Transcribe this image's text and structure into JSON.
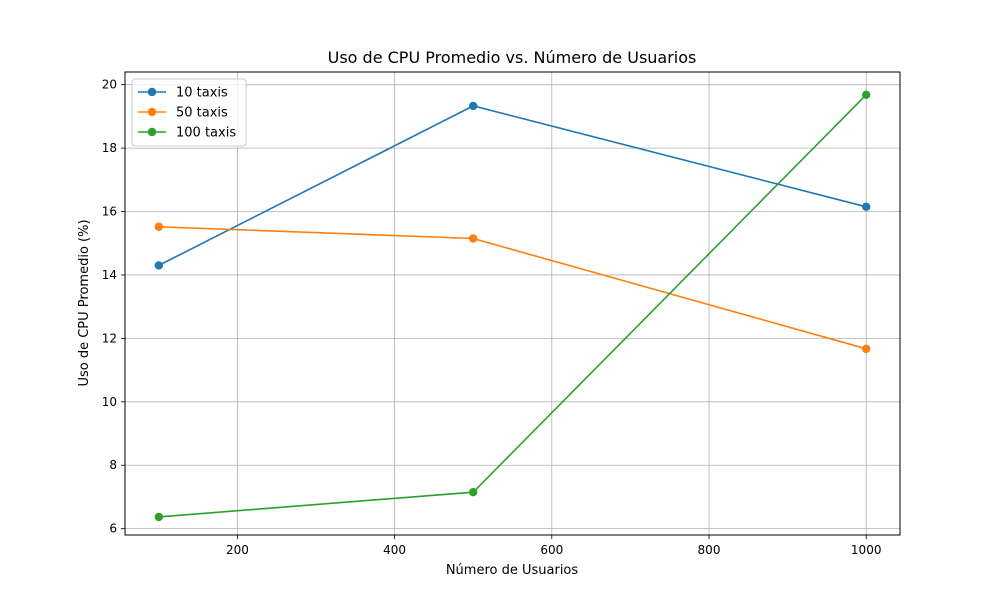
{
  "chart_data": {
    "type": "line",
    "title": "Uso de CPU Promedio vs. Número de Usuarios",
    "xlabel": "Número de Usuarios",
    "ylabel": "Uso de CPU Promedio (%)",
    "x": [
      100,
      500,
      1000
    ],
    "xlim": [
      57,
      1043
    ],
    "ylim": [
      5.8,
      20.4
    ],
    "xticks": [
      200,
      400,
      600,
      800,
      1000
    ],
    "yticks": [
      6,
      8,
      10,
      12,
      14,
      16,
      18,
      20
    ],
    "grid": true,
    "legend_position": "top-left",
    "series": [
      {
        "name": "10 taxis",
        "color": "#1f77b4",
        "values": [
          14.3,
          19.33,
          16.15
        ]
      },
      {
        "name": "50 taxis",
        "color": "#ff7f0e",
        "values": [
          15.52,
          15.15,
          11.67
        ]
      },
      {
        "name": "100 taxis",
        "color": "#2ca02c",
        "values": [
          6.37,
          7.15,
          19.68
        ]
      }
    ]
  }
}
